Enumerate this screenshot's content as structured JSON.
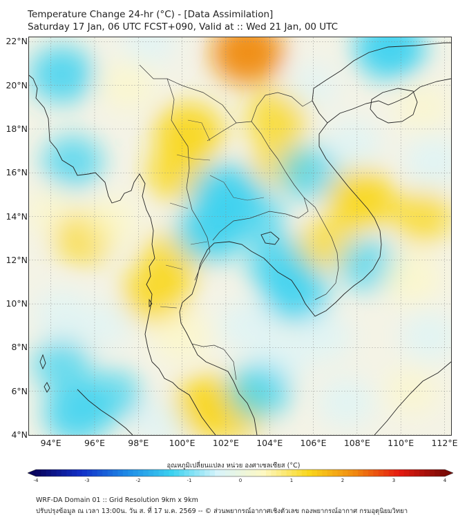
{
  "header": {
    "title_line1": "Temperature Change 24-hr (°C) - [Data Assimilation]",
    "title_line2": "Saturday 17 Jan, 06 UTC FCST+090, Valid at :: Wed 21 Jan, 00 UTC"
  },
  "map": {
    "lat_labels": [
      "22°N",
      "20°N",
      "18°N",
      "16°N",
      "14°N",
      "12°N",
      "10°N",
      "8°N",
      "6°N",
      "4°N"
    ],
    "lon_labels": [
      "94°E",
      "96°E",
      "98°E",
      "100°E",
      "102°E",
      "104°E",
      "106°E",
      "108°E",
      "110°E",
      "112°E"
    ],
    "extent": {
      "lon_min": 93,
      "lon_max": 112.3,
      "lat_min": 4,
      "lat_max": 22.2
    },
    "anomalies": [
      {
        "lon": 94.5,
        "lat": 20.5,
        "value": -1.3
      },
      {
        "lon": 95.0,
        "lat": 16.5,
        "value": -1.0
      },
      {
        "lon": 94.0,
        "lat": 14.2,
        "value": 0.4
      },
      {
        "lon": 95.5,
        "lat": 13.0,
        "value": 0.9
      },
      {
        "lon": 96.8,
        "lat": 13.8,
        "value": 0.6
      },
      {
        "lon": 94.5,
        "lat": 9.5,
        "value": -0.6
      },
      {
        "lon": 96.5,
        "lat": 9.0,
        "value": -0.4
      },
      {
        "lon": 94.5,
        "lat": 7.2,
        "value": -0.9
      },
      {
        "lon": 95.2,
        "lat": 5.0,
        "value": -1.4
      },
      {
        "lon": 96.8,
        "lat": 5.8,
        "value": -0.9
      },
      {
        "lon": 97.5,
        "lat": 20.0,
        "value": 0.6
      },
      {
        "lon": 98.5,
        "lat": 22.0,
        "value": -0.5
      },
      {
        "lon": 100.3,
        "lat": 17.8,
        "value": 1.6
      },
      {
        "lon": 99.8,
        "lat": 16.0,
        "value": 1.2
      },
      {
        "lon": 99.5,
        "lat": 12.0,
        "value": 1.1
      },
      {
        "lon": 98.8,
        "lat": 10.5,
        "value": 1.4
      },
      {
        "lon": 100.0,
        "lat": 8.5,
        "value": 0.8
      },
      {
        "lon": 101.2,
        "lat": 5.3,
        "value": 1.7
      },
      {
        "lon": 102.4,
        "lat": 5.1,
        "value": 1.3
      },
      {
        "lon": 103.0,
        "lat": 21.5,
        "value": 1.8
      },
      {
        "lon": 104.3,
        "lat": 18.5,
        "value": 1.1
      },
      {
        "lon": 104.5,
        "lat": 16.5,
        "value": 0.9
      },
      {
        "lon": 102.0,
        "lat": 15.0,
        "value": -1.6
      },
      {
        "lon": 101.3,
        "lat": 13.3,
        "value": -1.5
      },
      {
        "lon": 103.3,
        "lat": 14.0,
        "value": -1.0
      },
      {
        "lon": 104.5,
        "lat": 11.8,
        "value": -1.3
      },
      {
        "lon": 105.2,
        "lat": 10.5,
        "value": -1.4
      },
      {
        "lon": 103.0,
        "lat": 9.0,
        "value": -0.7
      },
      {
        "lon": 104.5,
        "lat": 7.5,
        "value": -0.7
      },
      {
        "lon": 103.5,
        "lat": 6.0,
        "value": -1.1
      },
      {
        "lon": 106.5,
        "lat": 8.5,
        "value": -0.6
      },
      {
        "lon": 105.8,
        "lat": 16.0,
        "value": -1.0
      },
      {
        "lon": 106.0,
        "lat": 20.0,
        "value": -0.3
      },
      {
        "lon": 108.2,
        "lat": 14.8,
        "value": 1.6
      },
      {
        "lon": 106.6,
        "lat": 12.7,
        "value": 0.9
      },
      {
        "lon": 108.5,
        "lat": 11.8,
        "value": -0.9
      },
      {
        "lon": 107.8,
        "lat": 17.3,
        "value": -0.6
      },
      {
        "lon": 109.5,
        "lat": 21.7,
        "value": -1.7
      },
      {
        "lon": 111.0,
        "lat": 19.0,
        "value": 0.4
      },
      {
        "lon": 111.5,
        "lat": 16.5,
        "value": -0.7
      },
      {
        "lon": 111.0,
        "lat": 14.0,
        "value": 1.0
      },
      {
        "lon": 110.5,
        "lat": 11.2,
        "value": 0.8
      },
      {
        "lon": 111.3,
        "lat": 8.5,
        "value": -0.6
      },
      {
        "lon": 110.5,
        "lat": 6.0,
        "value": 0.4
      },
      {
        "lon": 107.5,
        "lat": 5.5,
        "value": -0.6
      },
      {
        "lon": 99.0,
        "lat": 4.5,
        "value": -0.5
      }
    ]
  },
  "colorbar": {
    "title": "อุณหภูมิเปลี่ยนแปลง หน่วย องศาเซลเซียส (°C)",
    "min": -4,
    "max": 4,
    "ticks": [
      "-4",
      "-3",
      "-2",
      "-1",
      "0",
      "1",
      "2",
      "3",
      "4"
    ],
    "colors": [
      "#08045e",
      "#1230c8",
      "#1e8ae6",
      "#3cd2f0",
      "#d8f4fb",
      "#fdf8c4",
      "#f9d71c",
      "#f08a10",
      "#e51a10",
      "#7a0a06"
    ]
  },
  "footer": {
    "line1": "WRF-DA Domain 01 :: Grid Resolution 9km x 9km",
    "line2": "ปรับปรุงข้อมูล ณ เวลา 13:00น. วัน ส. ที่ 17 ม.ค. 2569 -- © ส่วนพยากรณ์อากาศเชิงตัวเลข กองพยากรณ์อากาศ กรมอุตุนิยมวิทยา"
  }
}
